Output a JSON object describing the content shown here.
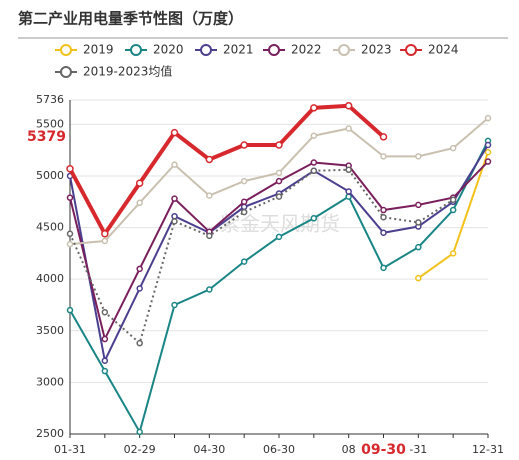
{
  "chart_data": {
    "type": "line",
    "title": "第二产业用电量季节性图（万度）",
    "watermark": "紫金天风期货",
    "categories": [
      "01-31",
      null,
      "02-29",
      null,
      "04-30",
      null,
      "06-30",
      null,
      "08",
      "09-30",
      "-31",
      null,
      "12-31"
    ],
    "ylim": [
      2500,
      5736
    ],
    "yticks": [
      2500,
      3000,
      3500,
      4000,
      4500,
      5000,
      5500,
      5736
    ],
    "grid": true,
    "annotation": 5379,
    "series": [
      {
        "name": "2019",
        "color": "#f2c21b",
        "dash": false,
        "values": [
          null,
          null,
          null,
          null,
          null,
          null,
          null,
          null,
          null,
          null,
          4010,
          4250,
          5230
        ]
      },
      {
        "name": "2020",
        "color": "#1a8585",
        "dash": false,
        "values": [
          3700,
          3110,
          2520,
          3750,
          3900,
          4170,
          4410,
          4590,
          4800,
          4110,
          4310,
          4670,
          5340
        ]
      },
      {
        "name": "2021",
        "color": "#4b3f8f",
        "dash": false,
        "values": [
          5000,
          3210,
          3910,
          4610,
          4450,
          4700,
          4830,
          5050,
          4850,
          4450,
          4510,
          4750,
          5300
        ]
      },
      {
        "name": "2022",
        "color": "#7a1f5c",
        "dash": false,
        "values": [
          4790,
          3420,
          4100,
          4780,
          4460,
          4750,
          4950,
          5130,
          5100,
          4670,
          4720,
          4790,
          5140
        ]
      },
      {
        "name": "2023",
        "color": "#c9c0b0",
        "dash": false,
        "values": [
          4340,
          4370,
          4740,
          5110,
          4810,
          4950,
          5030,
          5390,
          5460,
          5190,
          5190,
          5270,
          5560
        ]
      },
      {
        "name": "2024",
        "color": "#d6282d",
        "dash": false,
        "values": [
          5070,
          4440,
          4930,
          5420,
          5160,
          5300,
          5300,
          5660,
          5680,
          5379,
          null,
          null,
          null
        ]
      },
      {
        "name": "2019-2023均值",
        "color": "#666666",
        "dash": true,
        "values": [
          4440,
          3680,
          3380,
          4560,
          4420,
          4650,
          4800,
          5050,
          5060,
          4600,
          4550,
          4770,
          null
        ]
      }
    ]
  }
}
